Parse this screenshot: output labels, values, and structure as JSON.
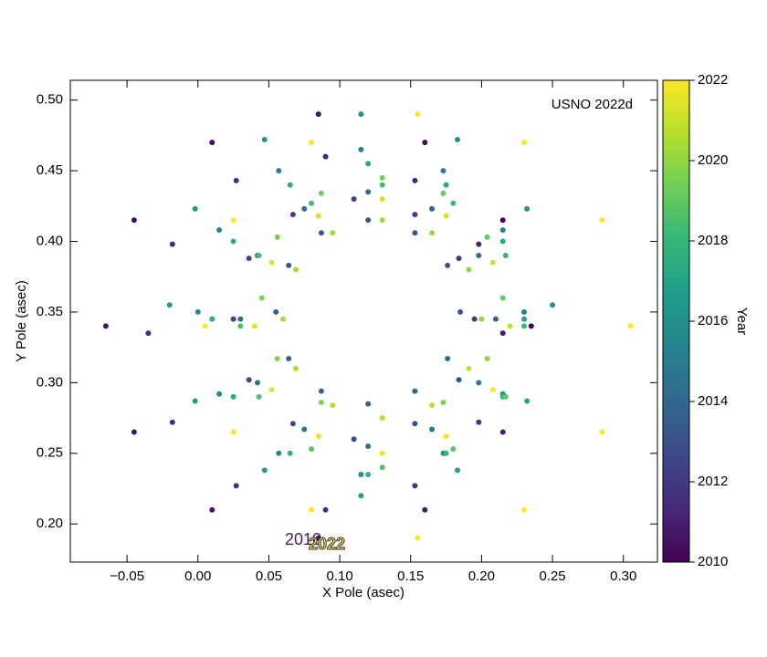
{
  "chart_data": {
    "type": "scatter",
    "xlabel": "X Pole (asec)",
    "ylabel": "Y Pole (asec)",
    "annotation": "USNO 2022d",
    "start_label": "2010",
    "end_label": "2022",
    "x": [
      0.235,
      0.215,
      0.16,
      0.085,
      0.01,
      -0.045,
      -0.065,
      -0.045,
      0.01,
      0.085,
      0.16,
      0.215,
      0.215,
      0.198,
      0.153,
      0.09,
      0.027,
      -0.018,
      -0.035,
      -0.018,
      0.027,
      0.09,
      0.153,
      0.198,
      0.195,
      0.184,
      0.153,
      0.11,
      0.067,
      0.036,
      0.025,
      0.036,
      0.067,
      0.11,
      0.153,
      0.184,
      0.185,
      0.176,
      0.153,
      0.12,
      0.087,
      0.064,
      0.055,
      0.064,
      0.087,
      0.12,
      0.153,
      0.176,
      0.21,
      0.198,
      0.165,
      0.12,
      0.075,
      0.042,
      0.03,
      0.042,
      0.075,
      0.12,
      0.165,
      0.198,
      0.23,
      0.215,
      0.173,
      0.115,
      0.057,
      0.015,
      0.0,
      0.015,
      0.057,
      0.115,
      0.173,
      0.215,
      0.25,
      0.232,
      0.183,
      0.115,
      0.047,
      -0.002,
      -0.02,
      -0.002,
      0.047,
      0.115,
      0.183,
      0.232,
      0.23,
      0.215,
      0.175,
      0.12,
      0.065,
      0.025,
      0.01,
      0.025,
      0.065,
      0.12,
      0.175,
      0.215,
      0.23,
      0.217,
      0.18,
      0.13,
      0.08,
      0.043,
      0.03,
      0.043,
      0.08,
      0.13,
      0.18,
      0.217,
      0.215,
      0.204,
      0.173,
      0.13,
      0.087,
      0.056,
      0.045,
      0.056,
      0.087,
      0.13,
      0.173,
      0.204,
      0.2,
      0.191,
      0.165,
      0.13,
      0.095,
      0.069,
      0.06,
      0.069,
      0.095,
      0.13,
      0.165,
      0.191,
      0.22,
      0.208,
      0.175,
      0.13,
      0.085,
      0.052,
      0.04,
      0.052,
      0.085,
      0.13,
      0.175,
      0.208,
      0.305,
      0.285,
      0.23,
      0.155,
      0.08,
      0.025,
      0.005,
      0.025,
      0.08,
      0.155,
      0.23,
      0.285
    ],
    "y": [
      0.34,
      0.415,
      0.47,
      0.49,
      0.47,
      0.415,
      0.34,
      0.265,
      0.21,
      0.19,
      0.21,
      0.265,
      0.335,
      0.398,
      0.443,
      0.46,
      0.443,
      0.398,
      0.335,
      0.272,
      0.227,
      0.21,
      0.227,
      0.272,
      0.345,
      0.388,
      0.419,
      0.43,
      0.419,
      0.388,
      0.345,
      0.302,
      0.271,
      0.26,
      0.271,
      0.302,
      0.35,
      0.383,
      0.406,
      0.415,
      0.406,
      0.383,
      0.35,
      0.317,
      0.294,
      0.285,
      0.294,
      0.317,
      0.345,
      0.39,
      0.423,
      0.435,
      0.423,
      0.39,
      0.345,
      0.3,
      0.267,
      0.255,
      0.267,
      0.3,
      0.35,
      0.408,
      0.45,
      0.465,
      0.45,
      0.408,
      0.35,
      0.292,
      0.25,
      0.235,
      0.25,
      0.292,
      0.355,
      0.423,
      0.472,
      0.49,
      0.472,
      0.423,
      0.355,
      0.287,
      0.238,
      0.22,
      0.238,
      0.287,
      0.345,
      0.4,
      0.44,
      0.455,
      0.44,
      0.4,
      0.345,
      0.29,
      0.25,
      0.235,
      0.25,
      0.29,
      0.34,
      0.39,
      0.427,
      0.44,
      0.427,
      0.39,
      0.34,
      0.29,
      0.253,
      0.24,
      0.253,
      0.29,
      0.36,
      0.403,
      0.434,
      0.445,
      0.434,
      0.403,
      0.36,
      0.317,
      0.286,
      0.275,
      0.286,
      0.317,
      0.345,
      0.38,
      0.406,
      0.415,
      0.406,
      0.38,
      0.345,
      0.31,
      0.284,
      0.275,
      0.284,
      0.31,
      0.34,
      0.385,
      0.418,
      0.43,
      0.418,
      0.385,
      0.34,
      0.295,
      0.262,
      0.25,
      0.262,
      0.295,
      0.34,
      0.415,
      0.47,
      0.49,
      0.47,
      0.415,
      0.34,
      0.265,
      0.21,
      0.19,
      0.21,
      0.265
    ],
    "color_values": [
      2010,
      2010.08,
      2010.17,
      2010.25,
      2010.33,
      2010.42,
      2010.5,
      2010.58,
      2010.67,
      2010.75,
      2010.83,
      2010.92,
      2011,
      2011.08,
      2011.17,
      2011.25,
      2011.33,
      2011.42,
      2011.5,
      2011.58,
      2011.67,
      2011.75,
      2011.83,
      2011.92,
      2012,
      2012.08,
      2012.17,
      2012.25,
      2012.33,
      2012.42,
      2012.5,
      2012.58,
      2012.67,
      2012.75,
      2012.83,
      2012.92,
      2013,
      2013.08,
      2013.17,
      2013.25,
      2013.33,
      2013.42,
      2013.5,
      2013.58,
      2013.67,
      2013.75,
      2013.83,
      2013.92,
      2014,
      2014.08,
      2014.17,
      2014.25,
      2014.33,
      2014.42,
      2014.5,
      2014.58,
      2014.67,
      2014.75,
      2014.83,
      2014.92,
      2015,
      2015.08,
      2015.17,
      2015.25,
      2015.33,
      2015.42,
      2015.5,
      2015.58,
      2015.67,
      2015.75,
      2015.83,
      2015.92,
      2016,
      2016.08,
      2016.17,
      2016.25,
      2016.33,
      2016.42,
      2016.5,
      2016.58,
      2016.67,
      2016.75,
      2016.83,
      2016.92,
      2017,
      2017.08,
      2017.17,
      2017.25,
      2017.33,
      2017.42,
      2017.5,
      2017.58,
      2017.67,
      2017.75,
      2017.83,
      2017.92,
      2018,
      2018.08,
      2018.17,
      2018.25,
      2018.33,
      2018.42,
      2018.5,
      2018.58,
      2018.67,
      2018.75,
      2018.83,
      2018.92,
      2019,
      2019.08,
      2019.17,
      2019.25,
      2019.33,
      2019.42,
      2019.5,
      2019.58,
      2019.67,
      2019.75,
      2019.83,
      2019.92,
      2020,
      2020.08,
      2020.17,
      2020.25,
      2020.33,
      2020.42,
      2020.5,
      2020.58,
      2020.67,
      2020.75,
      2020.83,
      2020.92,
      2021,
      2021.08,
      2021.17,
      2021.25,
      2021.33,
      2021.42,
      2021.5,
      2021.58,
      2021.67,
      2021.75,
      2021.83,
      2021.92,
      2022,
      2022,
      2022,
      2022,
      2022,
      2022,
      2022,
      2022,
      2022,
      2022,
      2022,
      2022
    ],
    "colormap": "viridis",
    "xlim": [
      -0.09,
      0.324
    ],
    "ylim": [
      0.173,
      0.514
    ],
    "xticks": [
      {
        "value": -0.05,
        "label": "−0.05"
      },
      {
        "value": 0,
        "label": "0.00"
      },
      {
        "value": 0.05,
        "label": "0.05"
      },
      {
        "value": 0.1,
        "label": "0.10"
      },
      {
        "value": 0.15,
        "label": "0.15"
      },
      {
        "value": 0.2,
        "label": "0.20"
      },
      {
        "value": 0.25,
        "label": "0.25"
      },
      {
        "value": 0.3,
        "label": "0.30"
      }
    ],
    "yticks": [
      {
        "value": 0.2,
        "label": "0.20"
      },
      {
        "value": 0.25,
        "label": "0.25"
      },
      {
        "value": 0.3,
        "label": "0.30"
      },
      {
        "value": 0.35,
        "label": "0.35"
      },
      {
        "value": 0.4,
        "label": "0.40"
      },
      {
        "value": 0.45,
        "label": "0.45"
      },
      {
        "value": 0.5,
        "label": "0.50"
      }
    ],
    "colorbar": {
      "label": "Year",
      "lim": [
        2010,
        2022
      ],
      "ticks": [
        2010,
        2012,
        2014,
        2016,
        2018,
        2020,
        2022
      ]
    }
  }
}
